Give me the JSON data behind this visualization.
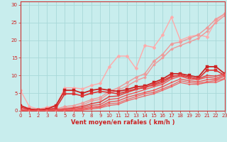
{
  "xlabel": "Vent moyen/en rafales ( km/h )",
  "xlim": [
    0,
    23
  ],
  "ylim": [
    0,
    31
  ],
  "xticks": [
    0,
    1,
    2,
    3,
    4,
    5,
    6,
    7,
    8,
    9,
    10,
    11,
    12,
    13,
    14,
    15,
    16,
    17,
    18,
    19,
    20,
    21,
    22,
    23
  ],
  "yticks": [
    0,
    5,
    10,
    15,
    20,
    25,
    30
  ],
  "bg_color": "#c8eded",
  "grid_color": "#a8d8d8",
  "lines": [
    {
      "x": [
        0,
        1,
        2,
        3,
        4,
        5,
        6,
        7,
        8,
        9,
        10,
        11,
        12,
        13,
        14,
        15,
        16,
        17,
        18,
        19,
        20,
        21,
        22,
        23
      ],
      "y": [
        5.8,
        1.2,
        0.5,
        1.0,
        1.5,
        6.5,
        6.5,
        6.2,
        7.2,
        7.8,
        12.5,
        15.5,
        15.5,
        12.0,
        18.5,
        18.0,
        21.5,
        26.5,
        20.0,
        21.0,
        21.5,
        21.0,
        25.5,
        27.5
      ],
      "color": "#ffaaaa",
      "lw": 1.0,
      "marker": "D",
      "ms": 2.5,
      "zorder": 2
    },
    {
      "x": [
        0,
        1,
        2,
        3,
        4,
        5,
        6,
        7,
        8,
        9,
        10,
        11,
        12,
        13,
        14,
        15,
        16,
        17,
        18,
        19,
        20,
        21,
        22,
        23
      ],
      "y": [
        0.5,
        0.2,
        0.1,
        0.2,
        0.5,
        1.2,
        1.5,
        2.2,
        3.2,
        3.8,
        5.5,
        6.5,
        8.0,
        9.5,
        10.5,
        14.0,
        16.0,
        19.0,
        19.5,
        20.5,
        21.5,
        23.5,
        26.0,
        27.5
      ],
      "color": "#ee9999",
      "lw": 1.0,
      "marker": "D",
      "ms": 2.5,
      "zorder": 2
    },
    {
      "x": [
        0,
        1,
        2,
        3,
        4,
        5,
        6,
        7,
        8,
        9,
        10,
        11,
        12,
        13,
        14,
        15,
        16,
        17,
        18,
        19,
        20,
        21,
        22,
        23
      ],
      "y": [
        0.3,
        0.1,
        0.05,
        0.1,
        0.3,
        0.8,
        1.0,
        1.6,
        2.8,
        3.2,
        5.0,
        5.8,
        7.0,
        8.5,
        9.5,
        13.0,
        15.0,
        17.5,
        18.5,
        19.5,
        20.5,
        22.5,
        25.0,
        27.0
      ],
      "color": "#ee9999",
      "lw": 1.0,
      "marker": "D",
      "ms": 2.0,
      "zorder": 2
    },
    {
      "x": [
        0,
        1,
        2,
        3,
        4,
        5,
        6,
        7,
        8,
        9,
        10,
        11,
        12,
        13,
        14,
        15,
        16,
        17,
        18,
        19,
        20,
        21,
        22,
        23
      ],
      "y": [
        1.5,
        0.5,
        0.3,
        0.5,
        1.5,
        5.8,
        5.8,
        5.0,
        5.8,
        6.2,
        5.8,
        5.5,
        6.0,
        6.8,
        7.0,
        8.0,
        9.0,
        10.5,
        10.5,
        10.0,
        9.5,
        12.5,
        12.5,
        10.5
      ],
      "color": "#cc2222",
      "lw": 1.3,
      "marker": "s",
      "ms": 2.5,
      "zorder": 3
    },
    {
      "x": [
        0,
        1,
        2,
        3,
        4,
        5,
        6,
        7,
        8,
        9,
        10,
        11,
        12,
        13,
        14,
        15,
        16,
        17,
        18,
        19,
        20,
        21,
        22,
        23
      ],
      "y": [
        1.0,
        0.3,
        0.2,
        0.3,
        0.8,
        4.8,
        4.8,
        4.2,
        5.0,
        5.5,
        5.2,
        4.8,
        5.5,
        6.2,
        6.5,
        7.5,
        8.5,
        9.8,
        10.0,
        9.5,
        9.0,
        11.5,
        11.5,
        10.0
      ],
      "color": "#dd3333",
      "lw": 1.2,
      "marker": "s",
      "ms": 2.2,
      "zorder": 3
    },
    {
      "x": [
        0,
        1,
        2,
        3,
        4,
        5,
        6,
        7,
        8,
        9,
        10,
        11,
        12,
        13,
        14,
        15,
        16,
        17,
        18,
        19,
        20,
        21,
        22,
        23
      ],
      "y": [
        0.3,
        0.05,
        0.05,
        0.1,
        0.3,
        0.5,
        0.8,
        1.2,
        2.0,
        2.5,
        4.0,
        4.2,
        5.2,
        6.0,
        6.8,
        7.2,
        8.0,
        9.5,
        10.2,
        9.5,
        9.0,
        10.0,
        9.8,
        10.5
      ],
      "color": "#dd4444",
      "lw": 1.1,
      "marker": "s",
      "ms": 2.0,
      "zorder": 3
    },
    {
      "x": [
        0,
        1,
        2,
        3,
        4,
        5,
        6,
        7,
        8,
        9,
        10,
        11,
        12,
        13,
        14,
        15,
        16,
        17,
        18,
        19,
        20,
        21,
        22,
        23
      ],
      "y": [
        0.1,
        0.02,
        0.02,
        0.05,
        0.1,
        0.3,
        0.5,
        0.8,
        1.5,
        1.8,
        3.2,
        3.5,
        4.5,
        5.2,
        6.0,
        6.8,
        7.5,
        9.0,
        9.8,
        9.0,
        8.8,
        9.5,
        9.2,
        10.2
      ],
      "color": "#ee5555",
      "lw": 1.0,
      "marker": "s",
      "ms": 1.8,
      "zorder": 3
    },
    {
      "x": [
        0,
        1,
        2,
        3,
        4,
        5,
        6,
        7,
        8,
        9,
        10,
        11,
        12,
        13,
        14,
        15,
        16,
        17,
        18,
        19,
        20,
        21,
        22,
        23
      ],
      "y": [
        0.05,
        0.01,
        0.01,
        0.02,
        0.05,
        0.15,
        0.3,
        0.5,
        1.0,
        1.3,
        2.5,
        2.8,
        3.8,
        4.5,
        5.2,
        5.8,
        6.8,
        8.0,
        9.0,
        8.5,
        8.2,
        8.8,
        8.8,
        9.8
      ],
      "color": "#ee5555",
      "lw": 1.0,
      "marker": "s",
      "ms": 1.8,
      "zorder": 3
    },
    {
      "x": [
        0,
        1,
        2,
        3,
        4,
        5,
        6,
        7,
        8,
        9,
        10,
        11,
        12,
        13,
        14,
        15,
        16,
        17,
        18,
        19,
        20,
        21,
        22,
        23
      ],
      "y": [
        0.02,
        0.005,
        0.005,
        0.01,
        0.03,
        0.08,
        0.2,
        0.3,
        0.7,
        1.0,
        2.0,
        2.2,
        3.2,
        4.0,
        4.8,
        5.2,
        6.2,
        7.2,
        8.5,
        8.0,
        7.8,
        8.2,
        8.5,
        9.2
      ],
      "color": "#ee6666",
      "lw": 0.9,
      "marker": "s",
      "ms": 1.5,
      "zorder": 3
    },
    {
      "x": [
        0,
        1,
        2,
        3,
        4,
        5,
        6,
        7,
        8,
        9,
        10,
        11,
        12,
        13,
        14,
        15,
        16,
        17,
        18,
        19,
        20,
        21,
        22,
        23
      ],
      "y": [
        0.01,
        0.002,
        0.002,
        0.005,
        0.015,
        0.05,
        0.1,
        0.2,
        0.5,
        0.8,
        1.5,
        1.8,
        2.8,
        3.5,
        4.2,
        4.8,
        5.8,
        6.8,
        8.0,
        7.5,
        7.5,
        8.0,
        8.0,
        9.0
      ],
      "color": "#ee6666",
      "lw": 0.9,
      "marker": "s",
      "ms": 1.5,
      "zorder": 3
    }
  ]
}
